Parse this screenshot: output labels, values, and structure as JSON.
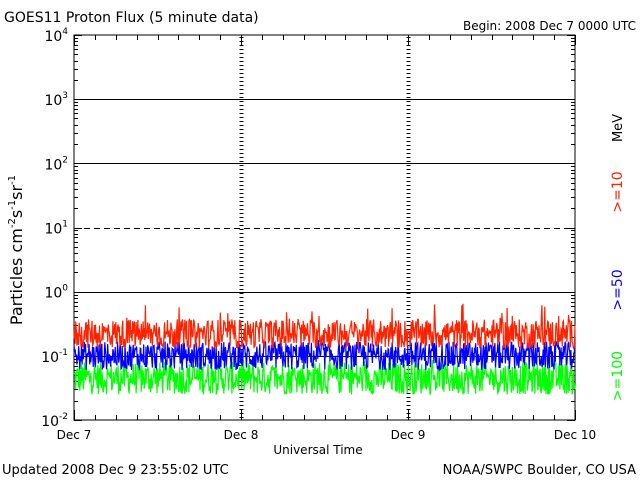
{
  "title": "GOES11 Proton Flux (5 minute data)",
  "begin_label": "Begin: 2008 Dec 7 0000 UTC",
  "updated_label": "Updated 2008 Dec  9 23:55:02 UTC",
  "credit_label": "NOAA/SWPC Boulder, CO USA",
  "chart_data": {
    "type": "line",
    "x": {
      "label": "Universal Time",
      "ticks": [
        "Dec 7",
        "Dec 8",
        "Dec 9",
        "Dec 10"
      ],
      "range": [
        "2008-12-07T00:00Z",
        "2008-12-10T00:00Z"
      ]
    },
    "y": {
      "label_main": "Particles cm",
      "label_exp1": "-2",
      "label_s": "s",
      "label_exp2": "-1",
      "label_sr": "sr",
      "label_exp3": "-1",
      "scale": "log",
      "range": [
        0.01,
        10000
      ],
      "tick_labels": [
        {
          "base": "10",
          "exp": "4"
        },
        {
          "base": "10",
          "exp": "3"
        },
        {
          "base": "10",
          "exp": "2"
        },
        {
          "base": "10",
          "exp": "1"
        },
        {
          "base": "10",
          "exp": "0"
        },
        {
          "base": "10",
          "exp": "-1"
        },
        {
          "base": "10",
          "exp": "-2"
        }
      ],
      "threshold_lines": [
        {
          "value": 1000,
          "style": "solid"
        },
        {
          "value": 100,
          "style": "solid"
        },
        {
          "value": 10,
          "style": "dashed"
        },
        {
          "value": 1,
          "style": "solid"
        },
        {
          "value": 0.1,
          "style": "solid"
        }
      ]
    },
    "unit_label": "MeV",
    "series": [
      {
        "name": ">=10",
        "color": "#ff2200",
        "typical_flux": 0.22,
        "min_flux": 0.13,
        "max_flux": 0.65
      },
      {
        "name": ">=50",
        "color": "#0000ff",
        "typical_flux": 0.1,
        "min_flux": 0.06,
        "max_flux": 0.18
      },
      {
        "name": ">=100",
        "color": "#00ff00",
        "typical_flux": 0.045,
        "min_flux": 0.025,
        "max_flux": 0.09
      }
    ]
  }
}
